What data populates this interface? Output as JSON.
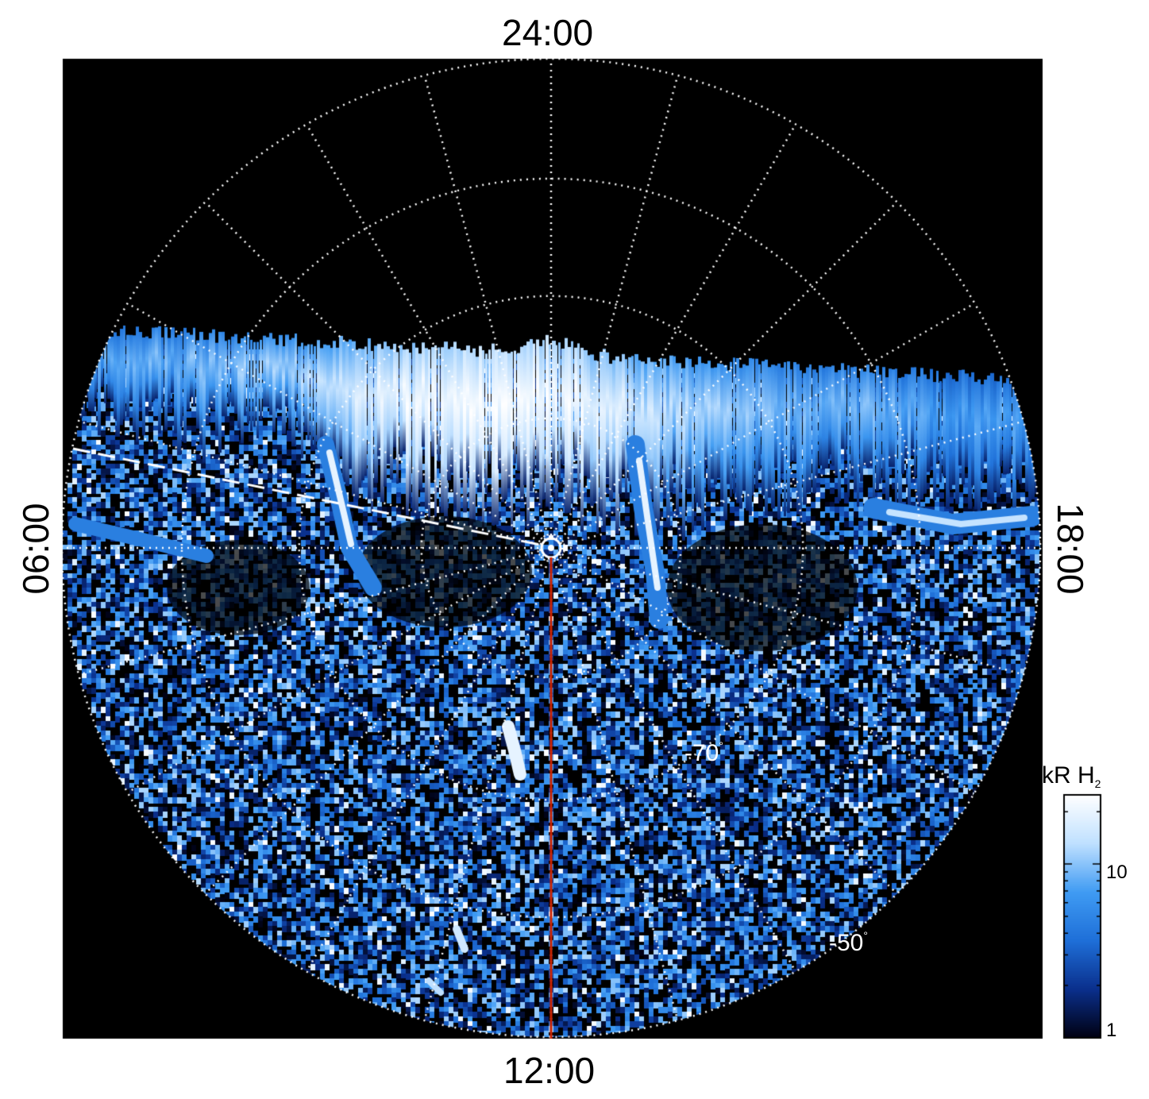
{
  "local_time_labels": {
    "top": "24:00",
    "bottom": "12:00",
    "left": "06:00",
    "right": "18:00"
  },
  "latitude_labels": {
    "inner": "-70",
    "outer": "-50",
    "degree_symbol": "°"
  },
  "colorbar": {
    "title_prefix": "kR H",
    "title_subscript": "2",
    "tick_labels": [
      "10",
      "1"
    ],
    "scale": "log",
    "colors": [
      "#000010",
      "#0a2f8c",
      "#1e6fd8",
      "#3f9bf3",
      "#bfe0ff",
      "#ffffff"
    ]
  },
  "colors": {
    "background": "#000000",
    "grid": "#ffffff",
    "noon_meridian": "#cc2200",
    "aurora_bright": "#e6f3ff",
    "aurora_mid": "#2a7fe0",
    "aurora_dim": "#072a78"
  }
}
